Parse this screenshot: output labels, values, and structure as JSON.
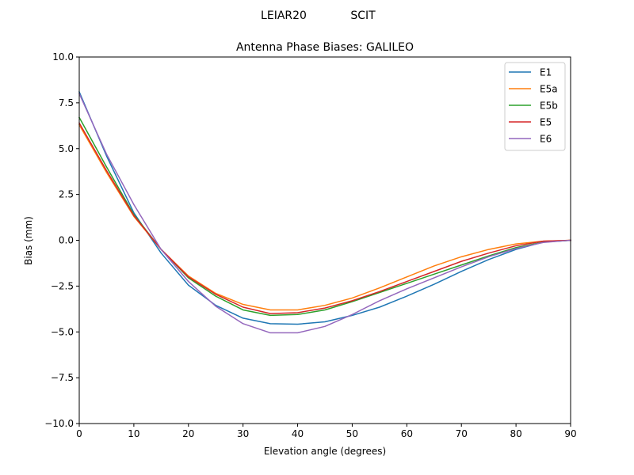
{
  "header": {
    "antenna": "LEIAR20",
    "radome": "SCIT"
  },
  "chart_data": {
    "type": "line",
    "title": "Antenna Phase Biases: GALILEO",
    "xlabel": "Elevation angle (degrees)",
    "ylabel": "Bias (mm)",
    "xlim": [
      0,
      90
    ],
    "ylim": [
      -10,
      10
    ],
    "xticks": [
      0,
      10,
      20,
      30,
      40,
      50,
      60,
      70,
      80,
      90
    ],
    "xtick_labels": [
      "0",
      "10",
      "20",
      "30",
      "40",
      "50",
      "60",
      "70",
      "80",
      "90"
    ],
    "yticks": [
      -10,
      -7.5,
      -5,
      -2.5,
      0,
      2.5,
      5,
      7.5,
      10
    ],
    "ytick_labels": [
      "−10.0",
      "−7.5",
      "−5.0",
      "−2.5",
      "0.0",
      "2.5",
      "5.0",
      "7.5",
      "10.0"
    ],
    "grid": false,
    "legend_position": "top-right",
    "x": [
      0,
      5,
      10,
      15,
      20,
      25,
      30,
      35,
      40,
      45,
      50,
      55,
      60,
      65,
      70,
      75,
      80,
      85,
      90
    ],
    "series": [
      {
        "name": "E1",
        "color": "#1f77b4",
        "values": [
          8.1,
          4.6,
          1.5,
          -0.7,
          -2.45,
          -3.55,
          -4.25,
          -4.55,
          -4.58,
          -4.45,
          -4.1,
          -3.65,
          -3.05,
          -2.4,
          -1.7,
          -1.05,
          -0.5,
          -0.1,
          0.0
        ]
      },
      {
        "name": "E5a",
        "color": "#ff7f0e",
        "values": [
          6.3,
          3.7,
          1.3,
          -0.5,
          -1.95,
          -2.9,
          -3.5,
          -3.8,
          -3.8,
          -3.55,
          -3.15,
          -2.6,
          -2.0,
          -1.4,
          -0.9,
          -0.5,
          -0.2,
          -0.05,
          0.0
        ]
      },
      {
        "name": "E5b",
        "color": "#2ca02c",
        "values": [
          6.7,
          4.0,
          1.4,
          -0.5,
          -2.05,
          -3.05,
          -3.8,
          -4.1,
          -4.05,
          -3.8,
          -3.35,
          -2.85,
          -2.35,
          -1.85,
          -1.35,
          -0.85,
          -0.4,
          -0.1,
          0.0
        ]
      },
      {
        "name": "E5",
        "color": "#d62728",
        "values": [
          6.4,
          3.8,
          1.35,
          -0.5,
          -2.0,
          -2.95,
          -3.65,
          -4.0,
          -3.95,
          -3.7,
          -3.3,
          -2.8,
          -2.25,
          -1.7,
          -1.15,
          -0.7,
          -0.3,
          -0.05,
          0.0
        ]
      },
      {
        "name": "E6",
        "color": "#9467bd",
        "values": [
          8.0,
          4.7,
          1.95,
          -0.5,
          -2.25,
          -3.6,
          -4.55,
          -5.05,
          -5.05,
          -4.7,
          -4.05,
          -3.3,
          -2.65,
          -2.05,
          -1.45,
          -0.9,
          -0.45,
          -0.12,
          0.0
        ]
      }
    ]
  }
}
